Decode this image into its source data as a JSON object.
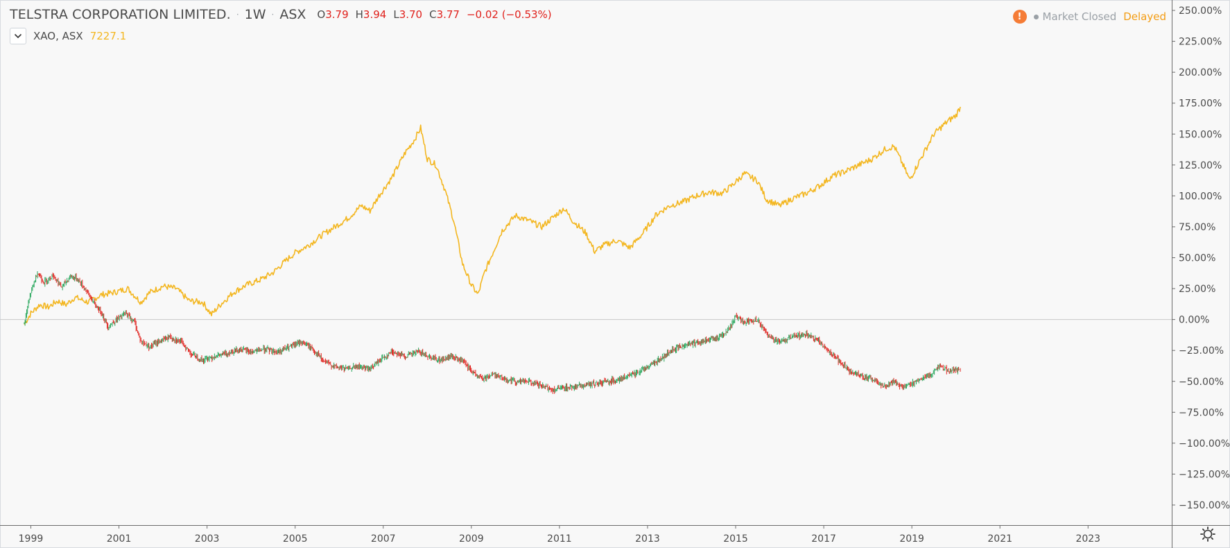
{
  "legend": {
    "title": "TELSTRA CORPORATION LIMITED.",
    "interval": "1W",
    "exchange": "ASX",
    "sep": "·",
    "ohlc": [
      {
        "key": "O",
        "value": "3.79"
      },
      {
        "key": "H",
        "value": "3.94"
      },
      {
        "key": "L",
        "value": "3.70"
      },
      {
        "key": "C",
        "value": "3.77"
      }
    ],
    "change": "−0.02 (−0.53%)",
    "compare_name": "XAO, ASX",
    "compare_value": "7227.1"
  },
  "status": {
    "warning_icon": "!",
    "market_status": "Market Closed",
    "delay": "Delayed"
  },
  "colors": {
    "up": "#26a65b",
    "down": "#e0201b",
    "compare": "#f3b61f",
    "zero_line": "#c8c8c8",
    "axis": "#9aa0a6"
  },
  "chart_data": {
    "type": "line",
    "scale": "percent",
    "ylim": [
      -150,
      250
    ],
    "y_ticks": [
      250,
      225,
      200,
      175,
      150,
      125,
      100,
      75,
      50,
      25,
      0,
      -25,
      -50,
      -75,
      -100,
      -125,
      -150
    ],
    "y_tick_labels": [
      "250.00%",
      "225.00%",
      "200.00%",
      "175.00%",
      "150.00%",
      "125.00%",
      "100.00%",
      "75.00%",
      "50.00%",
      "25.00%",
      "0.00%",
      "−25.00%",
      "−50.00%",
      "−75.00%",
      "−100.00%",
      "−125.00%",
      "−150.00%"
    ],
    "xlim": [
      1998.3,
      2024.9
    ],
    "x_ticks": [
      1999,
      2001,
      2003,
      2005,
      2007,
      2009,
      2011,
      2013,
      2015,
      2017,
      2019,
      2021,
      2023
    ],
    "x_tick_labels": [
      "1999",
      "2001",
      "2003",
      "2005",
      "2007",
      "2009",
      "2011",
      "2013",
      "2015",
      "2017",
      "2019",
      "2021",
      "2023"
    ],
    "series": [
      {
        "name": "XAO, ASX",
        "style": "line",
        "points": [
          [
            1998.85,
            -4
          ],
          [
            1999.0,
            5
          ],
          [
            1999.2,
            12
          ],
          [
            1999.4,
            10
          ],
          [
            1999.6,
            15
          ],
          [
            1999.8,
            12
          ],
          [
            2000.0,
            18
          ],
          [
            2000.3,
            14
          ],
          [
            2000.6,
            20
          ],
          [
            2000.9,
            22
          ],
          [
            2001.2,
            25
          ],
          [
            2001.5,
            14
          ],
          [
            2001.7,
            22
          ],
          [
            2002.0,
            27
          ],
          [
            2002.3,
            25
          ],
          [
            2002.6,
            15
          ],
          [
            2002.9,
            14
          ],
          [
            2003.1,
            4
          ],
          [
            2003.3,
            12
          ],
          [
            2003.6,
            22
          ],
          [
            2003.9,
            28
          ],
          [
            2004.2,
            32
          ],
          [
            2004.5,
            38
          ],
          [
            2004.8,
            48
          ],
          [
            2005.0,
            54
          ],
          [
            2005.3,
            60
          ],
          [
            2005.6,
            68
          ],
          [
            2005.9,
            75
          ],
          [
            2006.2,
            82
          ],
          [
            2006.5,
            92
          ],
          [
            2006.7,
            88
          ],
          [
            2006.9,
            100
          ],
          [
            2007.2,
            115
          ],
          [
            2007.5,
            135
          ],
          [
            2007.7,
            145
          ],
          [
            2007.85,
            155
          ],
          [
            2008.0,
            130
          ],
          [
            2008.2,
            125
          ],
          [
            2008.4,
            105
          ],
          [
            2008.6,
            80
          ],
          [
            2008.8,
            45
          ],
          [
            2009.0,
            28
          ],
          [
            2009.15,
            20
          ],
          [
            2009.3,
            38
          ],
          [
            2009.5,
            55
          ],
          [
            2009.7,
            72
          ],
          [
            2010.0,
            84
          ],
          [
            2010.3,
            80
          ],
          [
            2010.6,
            75
          ],
          [
            2010.9,
            84
          ],
          [
            2011.1,
            90
          ],
          [
            2011.3,
            80
          ],
          [
            2011.6,
            70
          ],
          [
            2011.8,
            55
          ],
          [
            2012.0,
            60
          ],
          [
            2012.3,
            64
          ],
          [
            2012.6,
            58
          ],
          [
            2012.9,
            70
          ],
          [
            2013.2,
            85
          ],
          [
            2013.5,
            92
          ],
          [
            2013.8,
            95
          ],
          [
            2014.1,
            100
          ],
          [
            2014.4,
            103
          ],
          [
            2014.7,
            102
          ],
          [
            2014.9,
            108
          ],
          [
            2015.2,
            118
          ],
          [
            2015.5,
            112
          ],
          [
            2015.7,
            97
          ],
          [
            2016.0,
            92
          ],
          [
            2016.3,
            98
          ],
          [
            2016.6,
            102
          ],
          [
            2016.9,
            108
          ],
          [
            2017.2,
            116
          ],
          [
            2017.5,
            120
          ],
          [
            2017.8,
            125
          ],
          [
            2018.1,
            130
          ],
          [
            2018.4,
            138
          ],
          [
            2018.6,
            140
          ],
          [
            2018.8,
            125
          ],
          [
            2018.95,
            113
          ],
          [
            2019.2,
            130
          ],
          [
            2019.5,
            150
          ],
          [
            2019.8,
            160
          ],
          [
            2020.0,
            165
          ],
          [
            2020.1,
            172
          ]
        ]
      },
      {
        "name": "TELSTRA CORPORATION LIMITED.",
        "style": "candles",
        "points": [
          [
            1998.85,
            -3
          ],
          [
            1999.0,
            22
          ],
          [
            1999.15,
            38
          ],
          [
            1999.3,
            30
          ],
          [
            1999.5,
            36
          ],
          [
            1999.7,
            26
          ],
          [
            1999.9,
            35
          ],
          [
            2000.05,
            33
          ],
          [
            2000.25,
            24
          ],
          [
            2000.45,
            12
          ],
          [
            2000.6,
            6
          ],
          [
            2000.75,
            -6
          ],
          [
            2000.95,
            0
          ],
          [
            2001.15,
            5
          ],
          [
            2001.35,
            -2
          ],
          [
            2001.5,
            -18
          ],
          [
            2001.7,
            -22
          ],
          [
            2001.9,
            -18
          ],
          [
            2002.15,
            -14
          ],
          [
            2002.4,
            -18
          ],
          [
            2002.65,
            -28
          ],
          [
            2002.9,
            -33
          ],
          [
            2003.15,
            -30
          ],
          [
            2003.4,
            -28
          ],
          [
            2003.7,
            -24
          ],
          [
            2004.0,
            -26
          ],
          [
            2004.3,
            -24
          ],
          [
            2004.6,
            -26
          ],
          [
            2004.9,
            -22
          ],
          [
            2005.15,
            -18
          ],
          [
            2005.4,
            -24
          ],
          [
            2005.65,
            -34
          ],
          [
            2005.9,
            -38
          ],
          [
            2006.15,
            -40
          ],
          [
            2006.4,
            -38
          ],
          [
            2006.7,
            -40
          ],
          [
            2006.95,
            -32
          ],
          [
            2007.2,
            -26
          ],
          [
            2007.5,
            -30
          ],
          [
            2007.8,
            -26
          ],
          [
            2008.05,
            -30
          ],
          [
            2008.3,
            -33
          ],
          [
            2008.55,
            -30
          ],
          [
            2008.8,
            -34
          ],
          [
            2009.0,
            -42
          ],
          [
            2009.25,
            -48
          ],
          [
            2009.5,
            -44
          ],
          [
            2009.75,
            -48
          ],
          [
            2010.0,
            -50
          ],
          [
            2010.3,
            -50
          ],
          [
            2010.6,
            -54
          ],
          [
            2010.85,
            -57
          ],
          [
            2011.15,
            -55
          ],
          [
            2011.45,
            -54
          ],
          [
            2011.8,
            -52
          ],
          [
            2012.1,
            -50
          ],
          [
            2012.4,
            -48
          ],
          [
            2012.7,
            -44
          ],
          [
            2013.0,
            -38
          ],
          [
            2013.3,
            -32
          ],
          [
            2013.6,
            -24
          ],
          [
            2013.9,
            -20
          ],
          [
            2014.2,
            -18
          ],
          [
            2014.5,
            -16
          ],
          [
            2014.8,
            -10
          ],
          [
            2015.0,
            2
          ],
          [
            2015.2,
            -2
          ],
          [
            2015.5,
            0
          ],
          [
            2015.75,
            -14
          ],
          [
            2016.0,
            -18
          ],
          [
            2016.3,
            -14
          ],
          [
            2016.6,
            -12
          ],
          [
            2016.9,
            -18
          ],
          [
            2017.1,
            -25
          ],
          [
            2017.35,
            -34
          ],
          [
            2017.6,
            -42
          ],
          [
            2017.9,
            -46
          ],
          [
            2018.2,
            -50
          ],
          [
            2018.4,
            -55
          ],
          [
            2018.55,
            -50
          ],
          [
            2018.8,
            -54
          ],
          [
            2019.0,
            -52
          ],
          [
            2019.2,
            -48
          ],
          [
            2019.45,
            -44
          ],
          [
            2019.65,
            -38
          ],
          [
            2019.85,
            -42
          ],
          [
            2020.1,
            -40
          ]
        ]
      }
    ]
  }
}
